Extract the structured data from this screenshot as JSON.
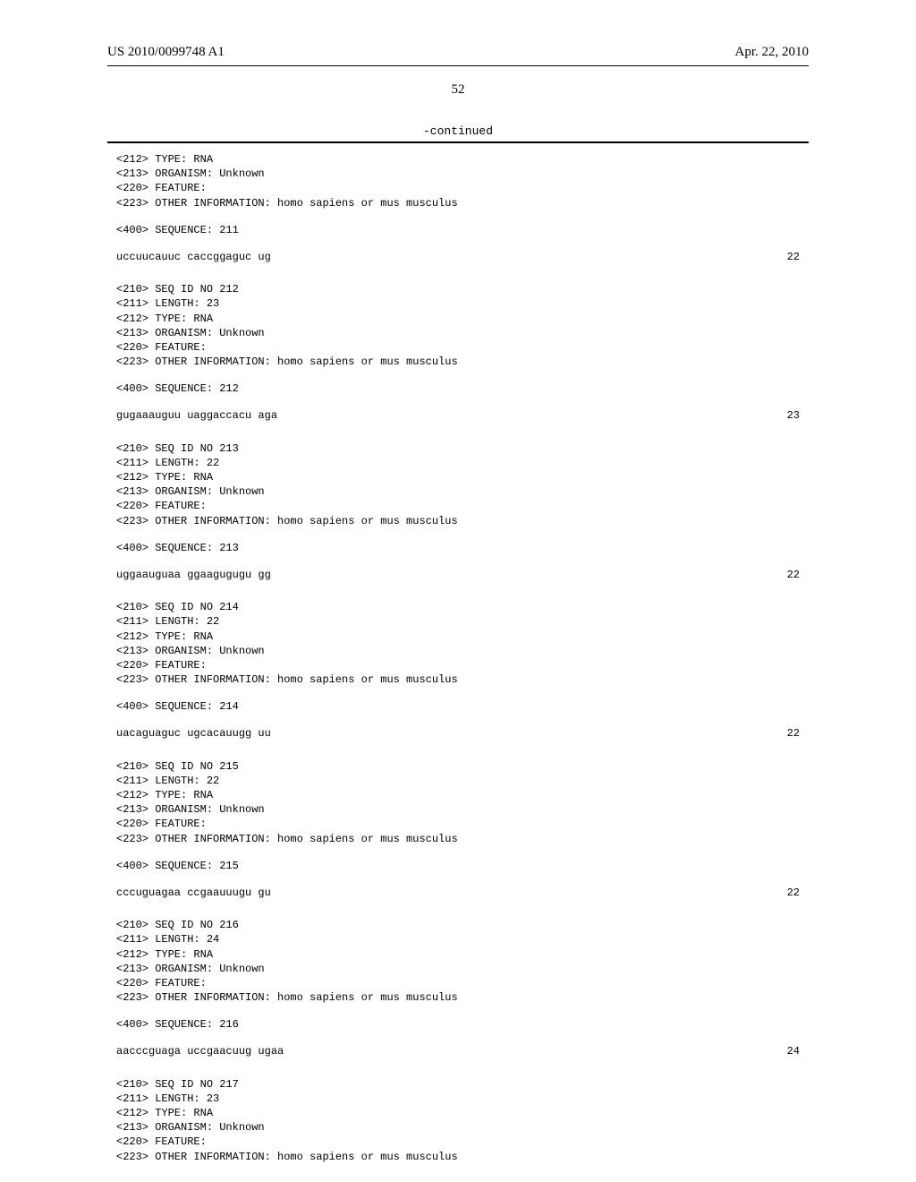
{
  "header": {
    "pub_number": "US 2010/0099748 A1",
    "pub_date": "Apr. 22, 2010"
  },
  "page_number": "52",
  "continued_label": "-continued",
  "entries": [
    {
      "pre_lines": [
        "<212> TYPE: RNA",
        "<213> ORGANISM: Unknown",
        "<220> FEATURE:",
        "<223> OTHER INFORMATION: homo sapiens or mus musculus"
      ],
      "seq_label": "<400> SEQUENCE: 211",
      "sequence": "uccuucauuc caccggaguc ug",
      "length": "22"
    },
    {
      "pre_lines": [
        "<210> SEQ ID NO 212",
        "<211> LENGTH: 23",
        "<212> TYPE: RNA",
        "<213> ORGANISM: Unknown",
        "<220> FEATURE:",
        "<223> OTHER INFORMATION: homo sapiens or mus musculus"
      ],
      "seq_label": "<400> SEQUENCE: 212",
      "sequence": "gugaaauguu uaggaccacu aga",
      "length": "23"
    },
    {
      "pre_lines": [
        "<210> SEQ ID NO 213",
        "<211> LENGTH: 22",
        "<212> TYPE: RNA",
        "<213> ORGANISM: Unknown",
        "<220> FEATURE:",
        "<223> OTHER INFORMATION: homo sapiens or mus musculus"
      ],
      "seq_label": "<400> SEQUENCE: 213",
      "sequence": "uggaauguaa ggaagugugu gg",
      "length": "22"
    },
    {
      "pre_lines": [
        "<210> SEQ ID NO 214",
        "<211> LENGTH: 22",
        "<212> TYPE: RNA",
        "<213> ORGANISM: Unknown",
        "<220> FEATURE:",
        "<223> OTHER INFORMATION: homo sapiens or mus musculus"
      ],
      "seq_label": "<400> SEQUENCE: 214",
      "sequence": "uacaguaguc ugcacauugg uu",
      "length": "22"
    },
    {
      "pre_lines": [
        "<210> SEQ ID NO 215",
        "<211> LENGTH: 22",
        "<212> TYPE: RNA",
        "<213> ORGANISM: Unknown",
        "<220> FEATURE:",
        "<223> OTHER INFORMATION: homo sapiens or mus musculus"
      ],
      "seq_label": "<400> SEQUENCE: 215",
      "sequence": "cccuguagaa ccgaauuugu gu",
      "length": "22"
    },
    {
      "pre_lines": [
        "<210> SEQ ID NO 216",
        "<211> LENGTH: 24",
        "<212> TYPE: RNA",
        "<213> ORGANISM: Unknown",
        "<220> FEATURE:",
        "<223> OTHER INFORMATION: homo sapiens or mus musculus"
      ],
      "seq_label": "<400> SEQUENCE: 216",
      "sequence": "aacccguaga uccgaacuug ugaa",
      "length": "24"
    },
    {
      "pre_lines": [
        "<210> SEQ ID NO 217",
        "<211> LENGTH: 23",
        "<212> TYPE: RNA",
        "<213> ORGANISM: Unknown",
        "<220> FEATURE:",
        "<223> OTHER INFORMATION: homo sapiens or mus musculus"
      ],
      "seq_label": "",
      "sequence": "",
      "length": ""
    }
  ]
}
